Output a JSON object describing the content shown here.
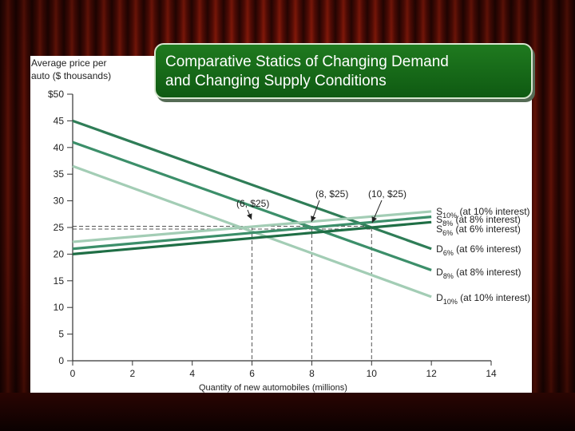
{
  "slide": {
    "title_line1": "Comparative Statics of Changing Demand",
    "title_line2": "and Changing Supply Conditions"
  },
  "chart_data": {
    "type": "line",
    "ylabel_line1": "Average price per",
    "ylabel_line2": "auto ($ thousands)",
    "xlabel": "Quantity of new automobiles (millions)",
    "xlim": [
      0,
      14
    ],
    "ylim": [
      0,
      50
    ],
    "x_ticks": [
      0,
      2,
      4,
      6,
      8,
      10,
      12,
      14
    ],
    "y_ticks": [
      0,
      5,
      10,
      15,
      20,
      25,
      30,
      35,
      40,
      45,
      50
    ],
    "y_tick_labels": [
      "0",
      "5",
      "10",
      "15",
      "20",
      "25",
      "30",
      "35",
      "40",
      "45",
      "$50"
    ],
    "series": [
      {
        "id": "d6",
        "name": "D6%",
        "base": "D",
        "sub": "6%",
        "note": " (at 6% interest)",
        "x": [
          0,
          12
        ],
        "y": [
          45,
          21
        ],
        "color": "#2f7d57"
      },
      {
        "id": "d8",
        "name": "D8%",
        "base": "D",
        "sub": "8%",
        "note": " (at 8% interest)",
        "x": [
          0,
          12
        ],
        "y": [
          41,
          17
        ],
        "color": "#3c8f6a"
      },
      {
        "id": "d10",
        "name": "D10%",
        "base": "D",
        "sub": "10%",
        "note": " (at 10% interest)",
        "x": [
          0,
          12
        ],
        "y": [
          36.5,
          12
        ],
        "color": "#a3cdb5"
      },
      {
        "id": "s10",
        "name": "S10%",
        "base": "S",
        "sub": "10%",
        "note": " (at 10% interest)",
        "x": [
          0,
          12
        ],
        "y": [
          22.3,
          28
        ],
        "color": "#a3cdb5"
      },
      {
        "id": "s8",
        "name": "S8%",
        "base": "S",
        "sub": "8%",
        "note": " (at 8% interest)",
        "x": [
          0,
          12
        ],
        "y": [
          21,
          27
        ],
        "color": "#3c8f6a"
      },
      {
        "id": "s6",
        "name": "S6%",
        "base": "S",
        "sub": "6%",
        "note": " (at 6% interest)",
        "x": [
          0,
          12
        ],
        "y": [
          20,
          26
        ],
        "color": "#1f6e45"
      }
    ],
    "equilibria": [
      {
        "label": "(6, $25)",
        "x": 6,
        "y": 25
      },
      {
        "label": "(8, $25)",
        "x": 8,
        "y": 25
      },
      {
        "label": "(10, $25)",
        "x": 10,
        "y": 25
      }
    ]
  }
}
